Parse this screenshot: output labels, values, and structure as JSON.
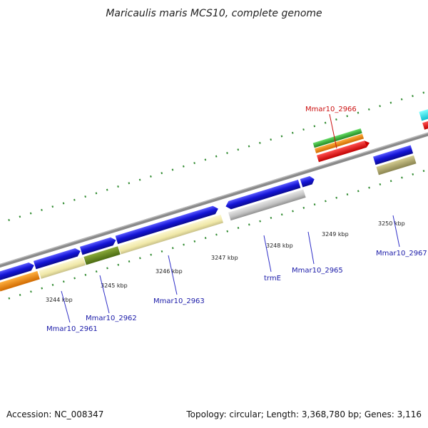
{
  "title": "Maricaulis maris MCS10, complete genome",
  "footer": {
    "accession": "Accession: NC_008347",
    "topology": "Topology: circular; Length: 3,368,780 bp; Genes: 3,116"
  },
  "tick_labels": [
    "3244 kbp",
    "3245 kbp",
    "3246 kbp",
    "3247 kbp",
    "3248 kbp",
    "3249 kbp",
    "3250 kbp"
  ],
  "gene_labels": [
    {
      "id": "mmar10-2961",
      "text": "Mmar10_2961",
      "color": "#1a1aa8"
    },
    {
      "id": "mmar10-2962",
      "text": "Mmar10_2962",
      "color": "#1a1aa8"
    },
    {
      "id": "mmar10-2963",
      "text": "Mmar10_2963",
      "color": "#1a1aa8"
    },
    {
      "id": "trme",
      "text": "trmE",
      "color": "#1a1aa8"
    },
    {
      "id": "mmar10-2965",
      "text": "Mmar10_2965",
      "color": "#1a1aa8"
    },
    {
      "id": "mmar10-2966",
      "text": "Mmar10_2966",
      "color": "#cc1111"
    },
    {
      "id": "mmar10-2967",
      "text": "Mmar10_2967",
      "color": "#1a1aa8"
    }
  ],
  "colors": {
    "backbone": "#8a8a8a",
    "tick": "#2f8a2f",
    "cds_blue": "#1414d6",
    "feature_cream": "#f0e8a8",
    "feature_olive": "#6a8a22",
    "feature_gray": "#c0c0c0",
    "feature_khaki": "#b8b070",
    "feature_orange": "#f08a10",
    "feature_green": "#44bb44",
    "feature_red": "#ee1111",
    "feature_cyan": "#22e8f0"
  }
}
